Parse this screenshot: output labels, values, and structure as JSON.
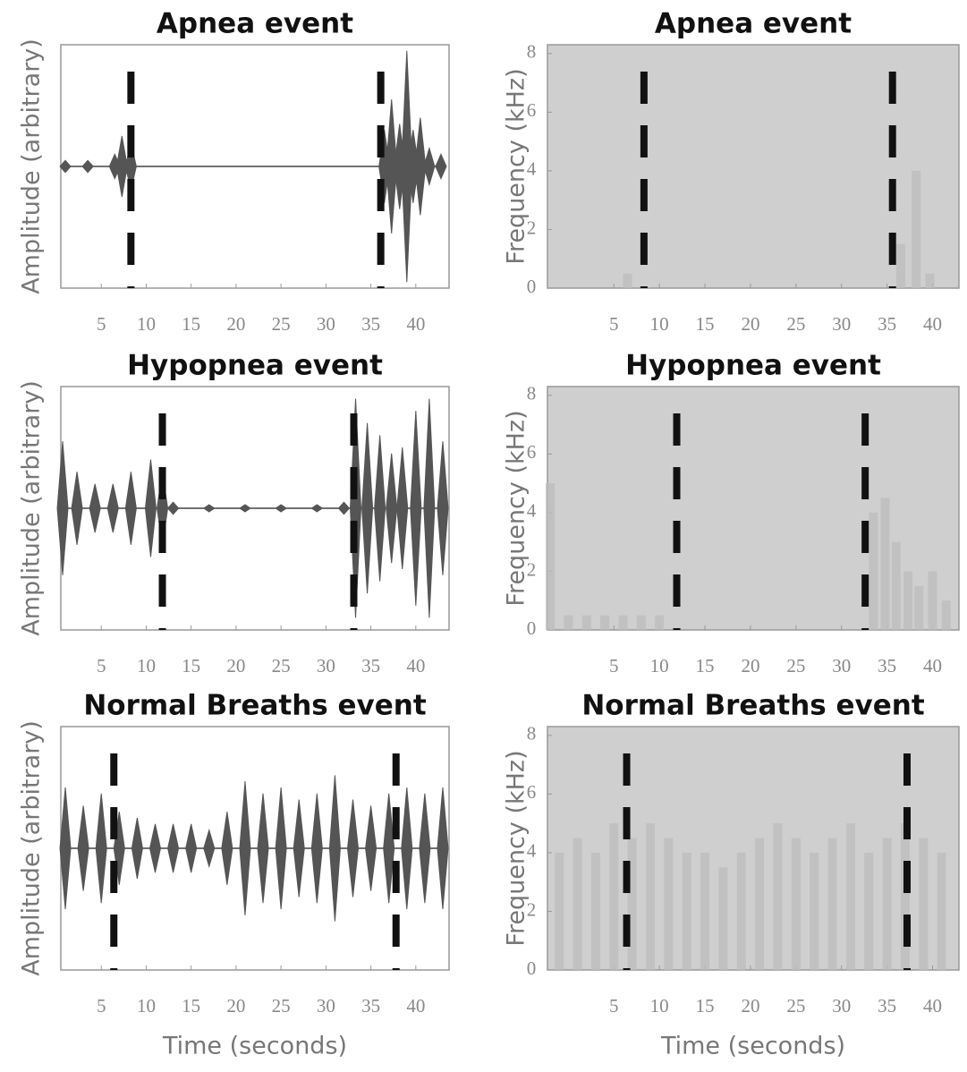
{
  "chart_data": [
    {
      "type": "waveform",
      "title": "Apnea event",
      "ylabel": "Amplitude (arbitrary)",
      "xlim": [
        0.5,
        43.7
      ],
      "ylim": [
        -1,
        1
      ],
      "xticks": [
        5,
        10,
        15,
        20,
        25,
        30,
        35,
        40
      ],
      "event_markers": [
        8.3,
        36.1
      ],
      "color": "#555555",
      "bursts": {
        "x": [
          1,
          3.5,
          6.5,
          7.3,
          8.3,
          36.5,
          37.3,
          38.2,
          39,
          39.7,
          40.5,
          41.5,
          42.8
        ],
        "amplitude": [
          0.05,
          0.05,
          0.1,
          0.25,
          0.2,
          0.3,
          0.55,
          0.35,
          0.95,
          0.3,
          0.4,
          0.15,
          0.1
        ]
      }
    },
    {
      "type": "spectrogram",
      "title": "Apnea event",
      "ylabel": "Frequency (kHz)",
      "xlim": [
        -2.3,
        42.9
      ],
      "ylim": [
        0,
        8.3
      ],
      "xticks": [
        5,
        10,
        15,
        20,
        25,
        30,
        35,
        40
      ],
      "yticks": [
        0,
        2,
        4,
        6,
        8
      ],
      "event_markers": [
        8.3,
        35.6
      ],
      "color": "#bdbdbd",
      "bands": {
        "x": [
          6.5,
          36.5,
          38.2,
          39.7
        ],
        "top": [
          0.5,
          1.5,
          4,
          0.5
        ]
      }
    },
    {
      "type": "waveform",
      "title": "Hypopnea event",
      "ylabel": "Amplitude (arbitrary)",
      "xlim": [
        0.5,
        43.7
      ],
      "ylim": [
        -1,
        1
      ],
      "xticks": [
        5,
        10,
        15,
        20,
        25,
        30,
        35,
        40
      ],
      "event_markers": [
        11.8,
        33.1
      ],
      "color": "#555555",
      "bursts": {
        "x": [
          0.7,
          2.3,
          4.3,
          6.3,
          8.3,
          10.5,
          11.8,
          13,
          17,
          21,
          25,
          29,
          32,
          33.3,
          34.6,
          36,
          37.3,
          38.5,
          40,
          41.5,
          43
        ],
        "amplitude": [
          0.55,
          0.3,
          0.2,
          0.2,
          0.3,
          0.4,
          0.3,
          0.05,
          0.03,
          0.03,
          0.03,
          0.03,
          0.05,
          0.9,
          0.7,
          0.6,
          0.45,
          0.5,
          0.8,
          0.9,
          0.55
        ]
      }
    },
    {
      "type": "spectrogram",
      "title": "Hypopnea event",
      "ylabel": "Frequency (kHz)",
      "xlim": [
        -2.3,
        42.9
      ],
      "ylim": [
        0,
        8.3
      ],
      "xticks": [
        5,
        10,
        15,
        20,
        25,
        30,
        35,
        40
      ],
      "yticks": [
        0,
        2,
        4,
        6,
        8
      ],
      "event_markers": [
        11.9,
        32.6
      ],
      "color": "#bdbdbd",
      "bands": {
        "x": [
          -2,
          0,
          2,
          4,
          6,
          8,
          10,
          33.5,
          34.8,
          36,
          37.3,
          38.5,
          40,
          41.5
        ],
        "top": [
          5,
          0.5,
          0.5,
          0.5,
          0.5,
          0.5,
          0.5,
          4,
          4.5,
          3,
          2,
          1.5,
          2,
          1
        ]
      }
    },
    {
      "type": "waveform",
      "title": "Normal Breaths event",
      "ylabel": "Amplitude (arbitrary)",
      "xlabel": "Time (seconds)",
      "xlim": [
        0.5,
        43.7
      ],
      "ylim": [
        -1,
        1
      ],
      "xticks": [
        5,
        10,
        15,
        20,
        25,
        30,
        35,
        40
      ],
      "event_markers": [
        6.4,
        37.8
      ],
      "color": "#555555",
      "bursts": {
        "x": [
          1,
          3,
          5,
          7,
          9,
          11,
          13,
          15,
          17,
          19,
          21,
          23,
          25,
          27,
          29,
          31,
          33,
          35,
          37,
          39,
          41,
          43
        ],
        "amplitude": [
          0.5,
          0.35,
          0.45,
          0.3,
          0.25,
          0.2,
          0.2,
          0.2,
          0.15,
          0.3,
          0.55,
          0.45,
          0.5,
          0.4,
          0.45,
          0.6,
          0.4,
          0.35,
          0.45,
          0.5,
          0.45,
          0.5
        ]
      }
    },
    {
      "type": "spectrogram",
      "title": "Normal Breaths event",
      "ylabel": "Frequency (kHz)",
      "xlabel": "Time (seconds)",
      "xlim": [
        -2.3,
        42.9
      ],
      "ylim": [
        0,
        8.3
      ],
      "xticks": [
        5,
        10,
        15,
        20,
        25,
        30,
        35,
        40
      ],
      "yticks": [
        0,
        2,
        4,
        6,
        8
      ],
      "event_markers": [
        6.4,
        37.2
      ],
      "color": "#bdbdbd",
      "bands": {
        "x": [
          -1,
          1,
          3,
          5,
          7,
          9,
          11,
          13,
          15,
          17,
          19,
          21,
          23,
          25,
          27,
          29,
          31,
          33,
          35,
          37,
          39,
          41
        ],
        "top": [
          4,
          4.5,
          4,
          5,
          4.5,
          5,
          4.5,
          4,
          4,
          3.5,
          4,
          4.5,
          5,
          4.5,
          4,
          4.5,
          5,
          4,
          4.5,
          5,
          4.5,
          4
        ]
      }
    }
  ]
}
